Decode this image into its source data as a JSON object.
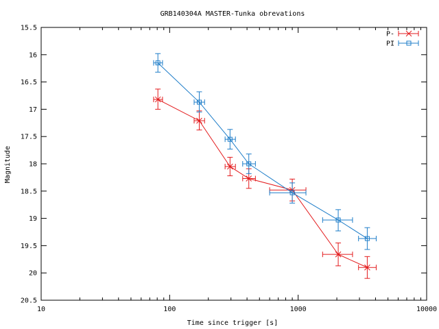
{
  "chart_data": {
    "type": "scatter",
    "title": "GRB140304A MASTER-Tunka obrevations",
    "xlabel": "Time since trigger [s]",
    "ylabel": "Magnitude",
    "x_scale": "log",
    "xlim": [
      10,
      10000
    ],
    "ylim": [
      20.5,
      15.5
    ],
    "y_inverted": true,
    "x_ticks": [
      10,
      100,
      1000,
      10000
    ],
    "x_tick_labels": [
      "10",
      "100",
      "1000",
      "10000"
    ],
    "y_ticks": [
      15.5,
      16,
      16.5,
      17,
      17.5,
      18,
      18.5,
      19,
      19.5,
      20,
      20.5
    ],
    "y_tick_labels": [
      "15.5",
      "16",
      "16.5",
      "17",
      "17.5",
      "18",
      "18.5",
      "19",
      "19.5",
      "20",
      "20.5"
    ],
    "grid": false,
    "legend_position": "top-right",
    "series": [
      {
        "name": "P-",
        "color": "#e31a1c",
        "marker": "cross",
        "points": [
          {
            "x": 81,
            "y": 16.82,
            "xerr": [
              75,
              88
            ],
            "yerr": [
              16.63,
              17.0
            ]
          },
          {
            "x": 170,
            "y": 17.21,
            "xerr": [
              155,
              187
            ],
            "yerr": [
              17.03,
              17.38
            ]
          },
          {
            "x": 295,
            "y": 18.05,
            "xerr": [
              270,
              325
            ],
            "yerr": [
              17.88,
              18.22
            ]
          },
          {
            "x": 413,
            "y": 18.27,
            "xerr": [
              370,
              465
            ],
            "yerr": [
              18.09,
              18.45
            ]
          },
          {
            "x": 900,
            "y": 18.48,
            "xerr": [
              600,
              1150
            ],
            "yerr": [
              18.28,
              18.68
            ]
          },
          {
            "x": 2050,
            "y": 19.66,
            "xerr": [
              1550,
              2650
            ],
            "yerr": [
              19.45,
              19.87
            ]
          },
          {
            "x": 3450,
            "y": 19.9,
            "xerr": [
              2950,
              4050
            ],
            "yerr": [
              19.7,
              20.1
            ]
          }
        ]
      },
      {
        "name": "PI",
        "color": "#1c7cc8",
        "marker": "square",
        "points": [
          {
            "x": 81,
            "y": 16.15,
            "xerr": [
              75,
              88
            ],
            "yerr": [
              15.98,
              16.32
            ]
          },
          {
            "x": 170,
            "y": 16.87,
            "xerr": [
              155,
              187
            ],
            "yerr": [
              16.68,
              17.05
            ]
          },
          {
            "x": 295,
            "y": 17.55,
            "xerr": [
              270,
              325
            ],
            "yerr": [
              17.37,
              17.73
            ]
          },
          {
            "x": 413,
            "y": 18.0,
            "xerr": [
              370,
              465
            ],
            "yerr": [
              17.82,
              18.18
            ]
          },
          {
            "x": 900,
            "y": 18.53,
            "xerr": [
              600,
              1150
            ],
            "yerr": [
              18.35,
              18.72
            ]
          },
          {
            "x": 2050,
            "y": 19.03,
            "xerr": [
              1550,
              2650
            ],
            "yerr": [
              18.84,
              19.23
            ]
          },
          {
            "x": 3450,
            "y": 19.37,
            "xerr": [
              2950,
              4050
            ],
            "yerr": [
              19.17,
              19.57
            ]
          }
        ]
      }
    ]
  }
}
